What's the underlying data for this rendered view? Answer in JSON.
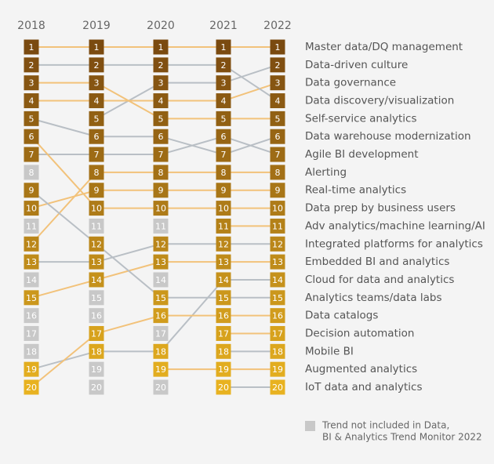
{
  "chart_data": {
    "type": "bump",
    "x": [
      2018,
      2019,
      2020,
      2021,
      2022
    ],
    "ylim": [
      1,
      20
    ],
    "series": [
      {
        "name": "Master data/DQ management",
        "color": "#f2c27a",
        "values": [
          1,
          1,
          1,
          1,
          1
        ]
      },
      {
        "name": "Data-driven culture",
        "color": "#b9bfc5",
        "values": [
          null,
          5,
          3,
          3,
          2
        ]
      },
      {
        "name": "Data governance",
        "color": "#f2c27a",
        "values": [
          4,
          4,
          4,
          4,
          3
        ]
      },
      {
        "name": "Data discovery/visualization",
        "color": "#b9bfc5",
        "values": [
          2,
          2,
          2,
          2,
          4
        ]
      },
      {
        "name": "Self-service analytics",
        "color": "#f2c27a",
        "values": [
          3,
          3,
          5,
          5,
          5
        ]
      },
      {
        "name": "Data warehouse modernization",
        "color": "#b9bfc5",
        "values": [
          5,
          6,
          6,
          7,
          6
        ]
      },
      {
        "name": "Agile BI development",
        "color": "#b9bfc5",
        "values": [
          7,
          7,
          7,
          6,
          7
        ]
      },
      {
        "name": "Alerting",
        "color": "#f2c27a",
        "values": [
          12,
          8,
          8,
          8,
          8
        ]
      },
      {
        "name": "Real-time analytics",
        "color": "#f2c27a",
        "values": [
          10,
          9,
          9,
          9,
          9
        ]
      },
      {
        "name": "Data prep by business users",
        "color": "#f2c27a",
        "values": [
          6,
          10,
          10,
          10,
          10
        ]
      },
      {
        "name": "Adv analytics/machine learning/AI",
        "color": "#f2c27a",
        "values": [
          null,
          null,
          null,
          11,
          11
        ]
      },
      {
        "name": "Integrated platforms for analytics",
        "color": "#b9bfc5",
        "values": [
          13,
          13,
          12,
          12,
          12
        ]
      },
      {
        "name": "Embedded BI and analytics",
        "color": "#f2c27a",
        "values": [
          15,
          14,
          13,
          13,
          13
        ]
      },
      {
        "name": "Cloud for data and analytics",
        "color": "#b9bfc5",
        "values": [
          19,
          18,
          18,
          14,
          14
        ]
      },
      {
        "name": "Analytics teams/data labs",
        "color": "#b9bfc5",
        "values": [
          9,
          12,
          15,
          15,
          15
        ]
      },
      {
        "name": "Data catalogs",
        "color": "#f2c27a",
        "values": [
          20,
          17,
          16,
          16,
          16
        ]
      },
      {
        "name": "Decision automation",
        "color": "#f2c27a",
        "values": [
          null,
          null,
          null,
          17,
          17
        ]
      },
      {
        "name": "Mobile BI",
        "color": "#b9bfc5",
        "values": [
          null,
          null,
          null,
          18,
          18
        ]
      },
      {
        "name": "Augmented analytics",
        "color": "#f2c27a",
        "values": [
          null,
          null,
          19,
          19,
          19
        ]
      },
      {
        "name": "IoT data and analytics",
        "color": "#b9bfc5",
        "values": [
          null,
          null,
          null,
          20,
          20
        ]
      }
    ],
    "excluded_ranks": [
      [
        8,
        11,
        14,
        16,
        17,
        18
      ],
      [
        11,
        15,
        16,
        19,
        20
      ],
      [
        11,
        14,
        17,
        20
      ],
      [],
      []
    ],
    "excluded_color": "#c8c8c8",
    "legend": [
      "Trend not included in Data,",
      "BI & Analytics Trend Monitor 2022"
    ]
  }
}
